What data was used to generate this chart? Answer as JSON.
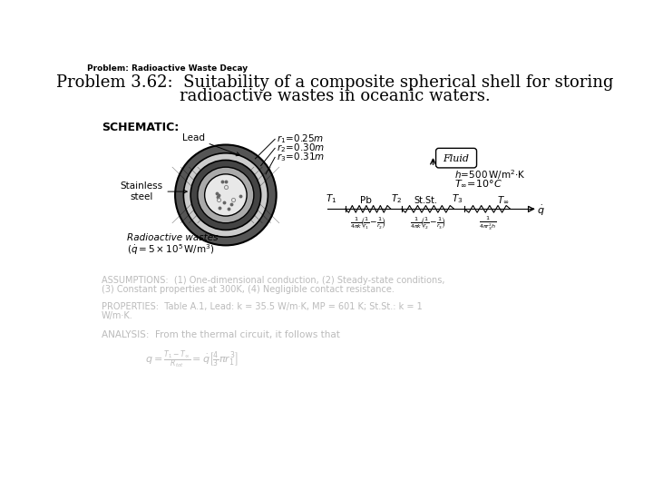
{
  "header": "Problem: Radioactive Waste Decay",
  "title_line1": "Problem 3.62:  Suitability of a composite spherical shell for storing",
  "title_line2": "radioactive wastes in oceanic waters.",
  "schematic_label": "SCHEMATIC:",
  "assumptions_text": [
    "ASSUMPTIONS:  (1) One-dimensional conduction, (2) Steady-state conditions,",
    "(3) Constant properties at 300K, (4) Negligible contact resistance."
  ],
  "properties_text": [
    "PROPERTIES:  Table A.1, Lead: k = 35.5 W/m·K, MP = 601 K; St.St.: k = 1",
    "W/m·K."
  ],
  "analysis_text": "ANALYSIS:  From the thermal circuit, it follows that",
  "bg_color": "#ffffff",
  "text_color": "#000000",
  "faded_color": "#bbbbbb"
}
